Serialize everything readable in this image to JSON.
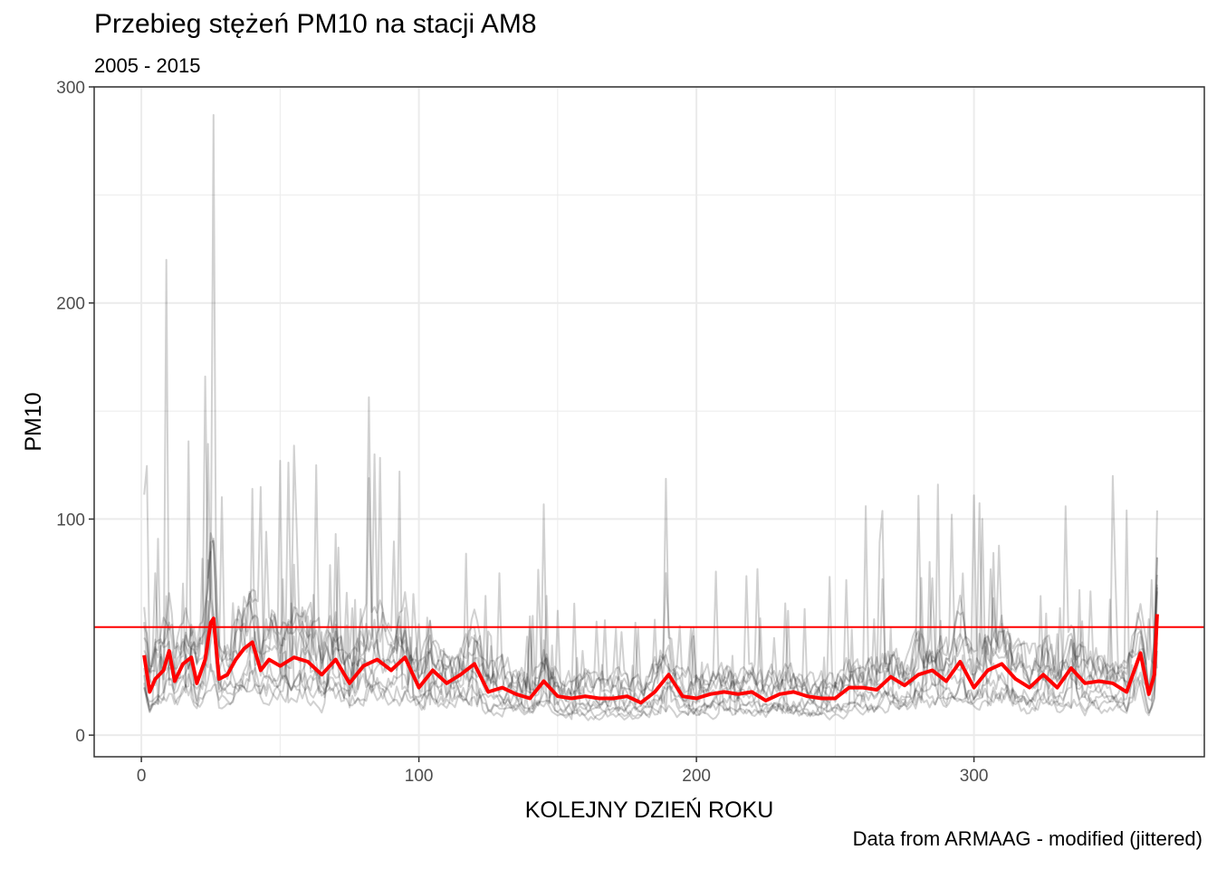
{
  "chart_data": {
    "type": "line",
    "title": "Przebieg stężeń PM10 na stacji AM8",
    "subtitle": "2005 - 2015",
    "caption": "Data from ARMAAG - modified (jittered)",
    "xlabel": "KOLEJNY DZIEŃ ROKU",
    "ylabel": "PM10",
    "xlim": [
      -17,
      383
    ],
    "ylim": [
      -10,
      300
    ],
    "x_ticks": [
      0,
      100,
      200,
      300
    ],
    "y_ticks": [
      0,
      100,
      200,
      300
    ],
    "grid": true,
    "threshold": 50,
    "colors": {
      "mean_line": "#ff0000",
      "threshold_line": "#ff0000",
      "yearly_lines": "#000000"
    },
    "yearly_series_count": 11,
    "mean_series": {
      "x": [
        1,
        3,
        5,
        8,
        10,
        12,
        15,
        18,
        20,
        23,
        25,
        26,
        28,
        31,
        34,
        37,
        40,
        43,
        46,
        50,
        55,
        60,
        65,
        70,
        75,
        80,
        85,
        90,
        95,
        100,
        105,
        110,
        115,
        120,
        125,
        130,
        135,
        140,
        145,
        150,
        155,
        160,
        165,
        170,
        175,
        180,
        185,
        190,
        195,
        200,
        205,
        210,
        215,
        220,
        225,
        230,
        235,
        240,
        245,
        250,
        255,
        260,
        265,
        270,
        275,
        280,
        285,
        290,
        295,
        300,
        305,
        310,
        315,
        320,
        325,
        330,
        335,
        340,
        345,
        350,
        355,
        360,
        363,
        365,
        366
      ],
      "values": [
        37,
        20,
        26,
        30,
        39,
        25,
        33,
        36,
        24,
        35,
        52,
        54,
        26,
        28,
        35,
        40,
        43,
        30,
        35,
        32,
        36,
        34,
        28,
        35,
        24,
        32,
        35,
        30,
        36,
        22,
        30,
        24,
        28,
        33,
        20,
        22,
        19,
        17,
        25,
        18,
        17,
        18,
        17,
        17,
        18,
        15,
        20,
        28,
        18,
        17,
        19,
        20,
        19,
        20,
        16,
        19,
        20,
        18,
        17,
        17,
        22,
        22,
        21,
        27,
        23,
        28,
        30,
        25,
        34,
        22,
        30,
        33,
        26,
        22,
        28,
        22,
        31,
        24,
        25,
        24,
        20,
        38,
        19,
        28,
        56
      ]
    }
  }
}
